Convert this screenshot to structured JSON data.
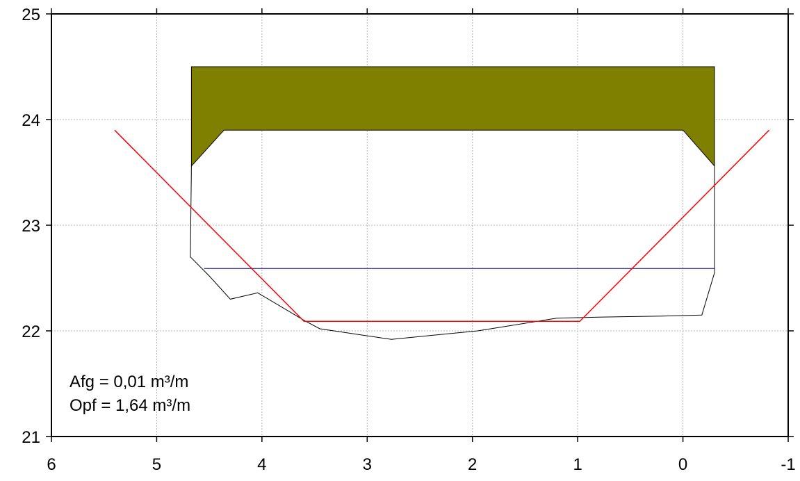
{
  "chart_data": {
    "type": "line",
    "title": "",
    "xlabel": "",
    "ylabel": "",
    "xlim": [
      6,
      -1
    ],
    "ylim": [
      21,
      25
    ],
    "x_reversed": true,
    "grid": true,
    "legend": "none",
    "x_ticks": [
      6,
      5,
      4,
      3,
      2,
      1,
      0,
      -1
    ],
    "x_tick_labels": [
      "6",
      "5",
      "4",
      "3",
      "2",
      "1",
      "0",
      "-1"
    ],
    "y_ticks": [
      21,
      22,
      23,
      24,
      25
    ],
    "y_tick_labels": [
      "21",
      "22",
      "23",
      "24",
      "25"
    ],
    "annotations": [
      "Afg = 0,01 m³/m",
      "Opf = 1,64 m³/m"
    ],
    "colors": {
      "bridge_fill": "#808000",
      "profile": "#000000",
      "design_profile": "#ff0000",
      "water_level": "#000080",
      "grid": "#b4b4b4",
      "axes": "#000000"
    },
    "series": [
      {
        "kind": "filled-polygon",
        "points": [
          [
            4.67,
            24.5
          ],
          [
            -0.3,
            24.5
          ],
          [
            -0.3,
            23.56
          ],
          [
            0,
            23.9
          ],
          [
            4.36,
            23.9
          ],
          [
            4.67,
            23.56
          ]
        ]
      },
      {
        "kind": "line",
        "points": [
          [
            4.67,
            23.56
          ],
          [
            4.68,
            22.7
          ],
          [
            4.5,
            22.52
          ],
          [
            4.3,
            22.3
          ],
          [
            4.04,
            22.36
          ],
          [
            3.6,
            22.1
          ],
          [
            3.45,
            22.02
          ],
          [
            2.77,
            21.92
          ],
          [
            1.95,
            22.0
          ],
          [
            1.2,
            22.12
          ],
          [
            0.8,
            22.13
          ],
          [
            0.2,
            22.14
          ],
          [
            -0.18,
            22.15
          ],
          [
            -0.3,
            22.55
          ],
          [
            -0.3,
            23.56
          ]
        ]
      },
      {
        "kind": "line",
        "points": [
          [
            4.55,
            22.59
          ],
          [
            -0.3,
            22.59
          ]
        ]
      },
      {
        "kind": "line",
        "points": [
          [
            5.4,
            23.9
          ],
          [
            3.6,
            22.09
          ],
          [
            0.98,
            22.09
          ],
          [
            -0.82,
            23.9
          ]
        ]
      }
    ]
  }
}
